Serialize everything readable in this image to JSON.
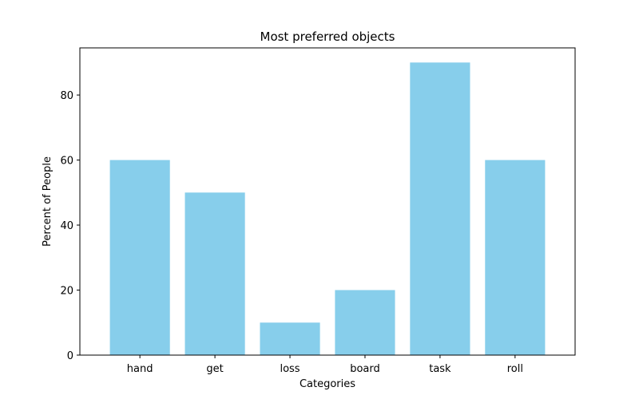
{
  "chart_data": {
    "type": "bar",
    "title": "Most preferred objects",
    "xlabel": "Categories",
    "ylabel": "Percent of People",
    "categories": [
      "hand",
      "get",
      "loss",
      "board",
      "task",
      "roll"
    ],
    "values": [
      60,
      50,
      10,
      20,
      90,
      60
    ],
    "ylim": [
      0,
      94.5
    ],
    "yticks": [
      0,
      20,
      40,
      60,
      80
    ],
    "bar_color": "#87ceeb",
    "grid": false,
    "legend": "none"
  }
}
